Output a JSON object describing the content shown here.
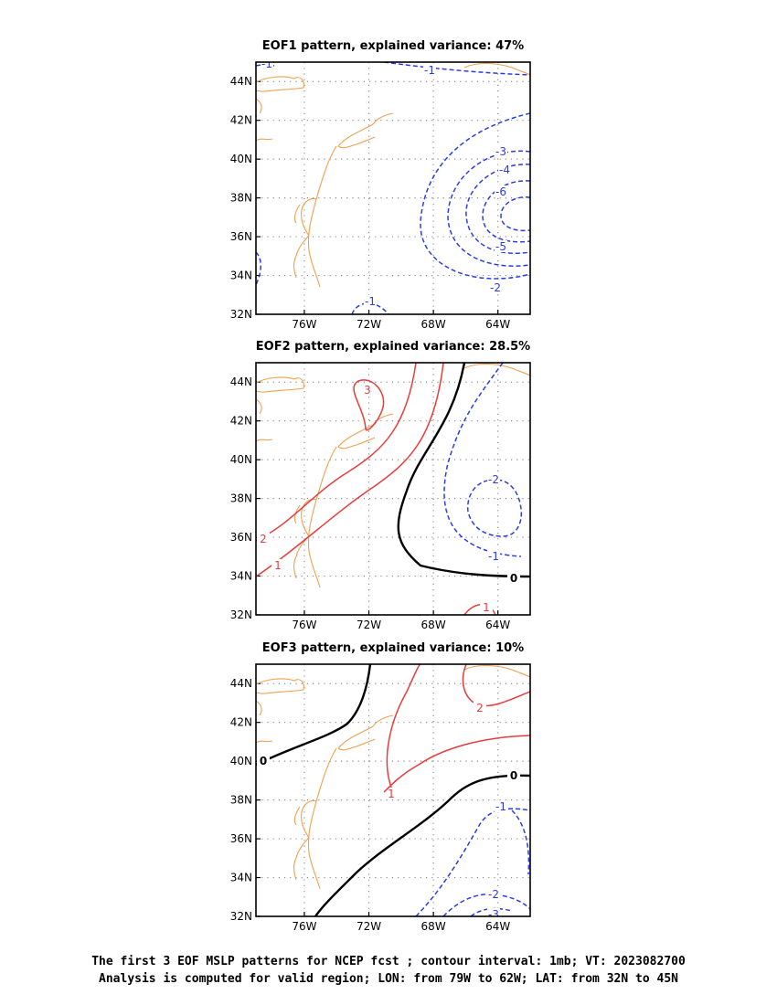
{
  "chart_data": [
    {
      "type": "contour",
      "title": "EOF1 pattern, explained variance: 47%",
      "x_range": [
        -79,
        -62
      ],
      "y_range": [
        32,
        45
      ],
      "x_ticks": [
        -76,
        -72,
        -68,
        -64
      ],
      "y_ticks": [
        32,
        34,
        36,
        38,
        40,
        42,
        44
      ],
      "x_tick_labels": [
        "76W",
        "72W",
        "68W",
        "64W"
      ],
      "y_tick_labels": [
        "32N",
        "34N",
        "36N",
        "38N",
        "40N",
        "42N",
        "44N"
      ],
      "grid": "dotted",
      "contour_labels": [
        "-1",
        "-2",
        "-3",
        "-4",
        "-5",
        "-6",
        "-1",
        "-1"
      ],
      "negative_style": "dashed blue",
      "minimum": {
        "lon": -63.4,
        "lat": 37.1,
        "approx_value": -6.5
      }
    },
    {
      "type": "contour",
      "title": "EOF2 pattern, explained variance: 28.5%",
      "x_range": [
        -79,
        -62
      ],
      "y_range": [
        32,
        45
      ],
      "x_ticks": [
        -76,
        -72,
        -68,
        -64
      ],
      "y_ticks": [
        32,
        34,
        36,
        38,
        40,
        42,
        44
      ],
      "x_tick_labels": [
        "76W",
        "72W",
        "68W",
        "64W"
      ],
      "y_tick_labels": [
        "32N",
        "34N",
        "36N",
        "38N",
        "40N",
        "42N",
        "44N"
      ],
      "grid": "dotted",
      "contour_labels": [
        "3",
        "2",
        "1",
        "0",
        "-1",
        "-2",
        "1"
      ],
      "positive_style": "solid red",
      "zero_style": "thick black",
      "negative_style": "dashed blue",
      "maximum": {
        "lon": -73.0,
        "lat": 42.0,
        "approx_value": 3.1
      },
      "minimum": {
        "lon": -64.0,
        "lat": 37.2,
        "approx_value": -2.2
      }
    },
    {
      "type": "contour",
      "title": "EOF3 pattern, explained variance: 10%",
      "x_range": [
        -79,
        -62
      ],
      "y_range": [
        32,
        45
      ],
      "x_ticks": [
        -76,
        -72,
        -68,
        -64
      ],
      "y_ticks": [
        32,
        34,
        36,
        38,
        40,
        42,
        44
      ],
      "x_tick_labels": [
        "76W",
        "72W",
        "68W",
        "64W"
      ],
      "y_tick_labels": [
        "32N",
        "34N",
        "36N",
        "38N",
        "40N",
        "42N",
        "44N"
      ],
      "grid": "dotted",
      "contour_labels": [
        "0",
        "0",
        "1",
        "2",
        "-1",
        "-2",
        "-3"
      ],
      "positive_style": "solid red",
      "zero_style": "thick black",
      "negative_style": "dashed blue"
    }
  ],
  "colors": {
    "coast": "#f0a050",
    "positive": "#e83c3c",
    "negative": "#2a3ce6",
    "zero": "#000000",
    "grid": "#8c8c8c"
  },
  "footer": {
    "line1": "The first 3 EOF MSLP patterns for NCEP fcst ; contour interval: 1mb; VT: 2023082700",
    "line2": "Analysis is computed for valid region; LON: from 79W to 62W; LAT: from 32N to 45N"
  }
}
